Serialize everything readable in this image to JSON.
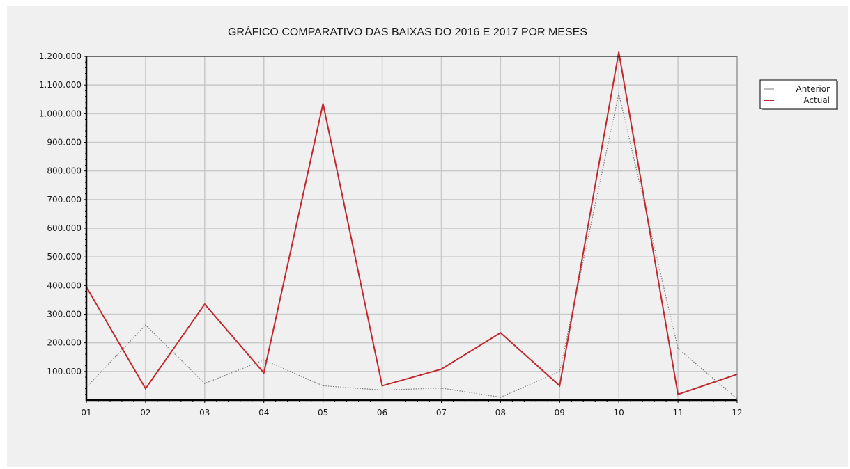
{
  "colors": {
    "background": "#f0f0f0",
    "grid": "#c8c8c8",
    "axis": "#000000",
    "anterior": "#7a7a7a",
    "actual": "#c0282d"
  },
  "chart_data": {
    "type": "line",
    "title": "GRÁFICO COMPARATIVO DAS BAIXAS DO 2016 E 2017 POR MESES",
    "xlabel": "",
    "ylabel": "",
    "categories": [
      "01",
      "02",
      "03",
      "04",
      "05",
      "06",
      "07",
      "08",
      "09",
      "10",
      "11",
      "12"
    ],
    "ylim": [
      0,
      1200000
    ],
    "yticks": [
      100000,
      200000,
      300000,
      400000,
      500000,
      600000,
      700000,
      800000,
      900000,
      1000000,
      1100000,
      1200000
    ],
    "ytick_labels": [
      "100.000",
      "200.000",
      "300.000",
      "400.000",
      "500.000",
      "600.000",
      "700.000",
      "800.000",
      "900.000",
      "1.000.000",
      "1.100.000",
      "1.200.000"
    ],
    "grid": true,
    "legend_position": "top-right",
    "series": [
      {
        "name": "Anterior",
        "style": "dotted",
        "values": [
          45000,
          262000,
          58000,
          140000,
          50000,
          35000,
          42000,
          10000,
          100000,
          1070000,
          180000,
          5000
        ]
      },
      {
        "name": "Actual",
        "style": "solid",
        "values": [
          395000,
          40000,
          335000,
          95000,
          1035000,
          50000,
          108000,
          235000,
          50000,
          1215000,
          20000,
          90000
        ]
      }
    ]
  }
}
